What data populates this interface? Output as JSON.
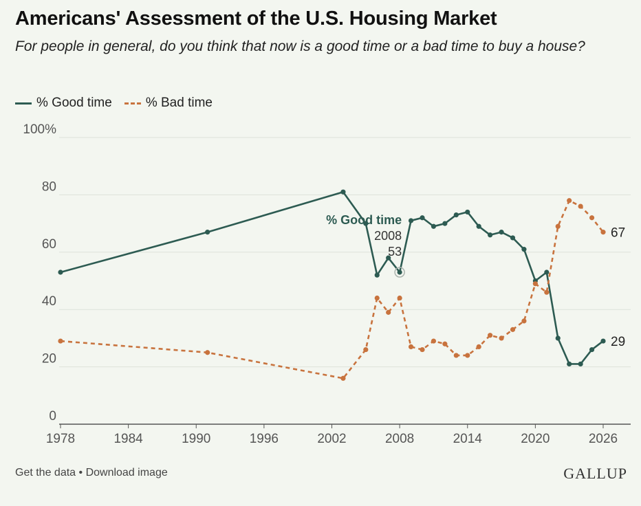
{
  "header": {
    "title": "Americans' Assessment of the U.S. Housing Market",
    "subtitle": "For people in general, do you think that now is a good time or a bad time to buy a house?"
  },
  "legend": {
    "good_label": "% Good time",
    "bad_label": "% Bad time"
  },
  "footer": {
    "get_data": "Get the data",
    "separator": " • ",
    "download": "Download image",
    "brand": "GALLUP"
  },
  "chart_data": {
    "type": "line",
    "xlim": [
      1978,
      2026
    ],
    "ylim": [
      0,
      100
    ],
    "x_ticks": [
      1978,
      1984,
      1990,
      1996,
      2002,
      2008,
      2014,
      2020,
      2026
    ],
    "y_ticks": [
      0,
      20,
      40,
      60,
      80,
      100
    ],
    "y_tick_labels": [
      "0",
      "20",
      "40",
      "60",
      "80",
      "100%"
    ],
    "grid": "horizontal",
    "legend_position": "top-left",
    "colors": {
      "good": "#2d5b52",
      "bad": "#c8733e"
    },
    "x": [
      1978,
      1991,
      2003,
      2005,
      2006,
      2007,
      2008,
      2009,
      2010,
      2011,
      2012,
      2013,
      2014,
      2015,
      2016,
      2017,
      2018,
      2019,
      2020,
      2021,
      2022,
      2023,
      2024,
      2025,
      2026
    ],
    "series": [
      {
        "name": "% Good time",
        "key": "good",
        "values": [
          53,
          67,
          81,
          70,
          52,
          58,
          53,
          71,
          72,
          69,
          70,
          73,
          74,
          69,
          66,
          67,
          65,
          61,
          50,
          53,
          30,
          21,
          21,
          26,
          29
        ],
        "end_label": "29"
      },
      {
        "name": "% Bad time",
        "key": "bad",
        "values": [
          29,
          25,
          16,
          26,
          44,
          39,
          44,
          27,
          26,
          29,
          28,
          24,
          24,
          27,
          31,
          30,
          33,
          36,
          49,
          46,
          69,
          78,
          76,
          72,
          67
        ],
        "end_label": "67"
      }
    ],
    "annotation": {
      "series_label": "% Good time",
      "x": 2008,
      "x_label": "2008",
      "value": 53,
      "value_label": "53"
    }
  }
}
